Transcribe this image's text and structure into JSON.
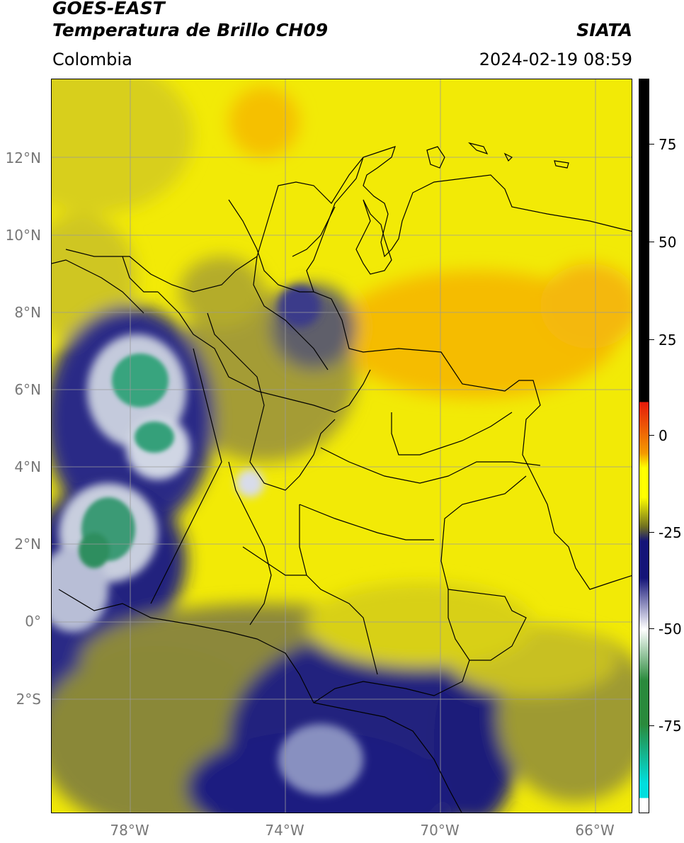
{
  "header": {
    "line1": "GOES-EAST",
    "line2": "Temperatura de Brillo CH09",
    "region": "Colombia",
    "brand": "SIATA",
    "datetime": "2024-02-19 08:59"
  },
  "axes": {
    "lat_labels": [
      "12°N",
      "10°N",
      "8°N",
      "6°N",
      "4°N",
      "2°N",
      "0°",
      "2°S"
    ],
    "lon_labels": [
      "78°W",
      "74°W",
      "70°W",
      "66°W"
    ]
  },
  "colorbar": {
    "labels": [
      "75",
      "50",
      "25",
      "0",
      "-25",
      "-50",
      "-75"
    ],
    "colors": {
      "top_black": "#000000",
      "red": "#e51a0a",
      "orange": "#f59a00",
      "yellow": "#ffff00",
      "olive": "#707020",
      "navy": "#141478",
      "white": "#ffffff",
      "green": "#2a8a3c",
      "cyan": "#00dede"
    }
  },
  "map": {
    "colors": {
      "yellow_bright": "#f8f200",
      "yellow_mid": "#e6dc10",
      "orange_patch": "#f5b808",
      "olive": "#a8a02c",
      "olive_dark": "#6e6e40",
      "navy": "#1c1c82",
      "navy_light": "#5a5aa6",
      "white_cloud": "#e8ecf2",
      "green_core": "#34a07a",
      "grid": "#9a9a9a",
      "border": "#000000"
    }
  }
}
